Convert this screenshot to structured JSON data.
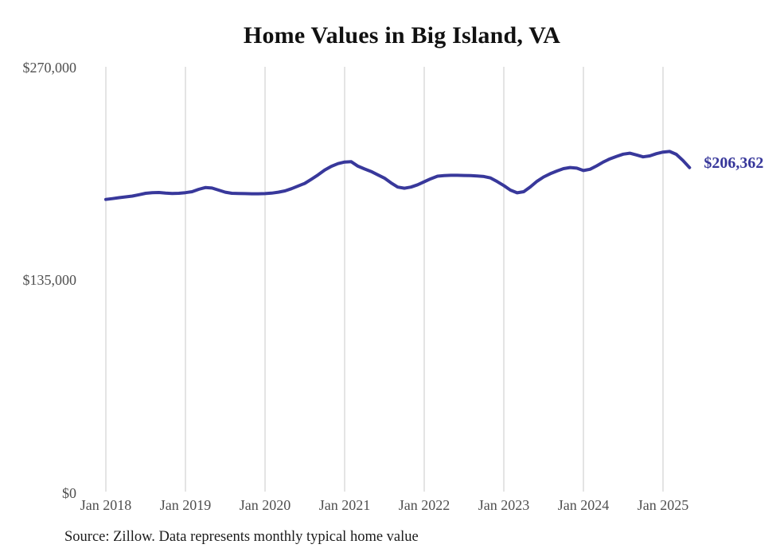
{
  "header": {
    "title": "Home Values in Big Island, VA"
  },
  "footer": {
    "source_text": "Source: Zillow. Data represents monthly typical home value"
  },
  "colors": {
    "line": "#38389b",
    "end_label": "#38389b",
    "gridline": "#c9c9c9",
    "axis_text": "#4f4f4f",
    "title_text": "#111111",
    "source_text": "#1d1d1d",
    "background": "#ffffff"
  },
  "chart_data": {
    "type": "line",
    "title": "Home Values in Big Island, VA",
    "series_name": "Monthly typical home value",
    "unit": "USD",
    "frequency": "monthly",
    "x_start": "Jan 2018",
    "x_end": "May 2025",
    "xlabel": "",
    "ylabel": "",
    "ylim": [
      0,
      270000
    ],
    "grid": "vertical-only",
    "legend": "none",
    "end_label": "$206,362",
    "last_value": 206362,
    "y_ticks": [
      {
        "label": "$270,000",
        "value": 270000
      },
      {
        "label": "$135,000",
        "value": 135000
      },
      {
        "label": "$0",
        "value": 0
      }
    ],
    "x_tick_labels": [
      "Jan 2018",
      "Jan 2019",
      "Jan 2020",
      "Jan 2021",
      "Jan 2022",
      "Jan 2023",
      "Jan 2024",
      "Jan 2025"
    ],
    "months": [
      "2018-01",
      "2018-02",
      "2018-03",
      "2018-04",
      "2018-05",
      "2018-06",
      "2018-07",
      "2018-08",
      "2018-09",
      "2018-10",
      "2018-11",
      "2018-12",
      "2019-01",
      "2019-02",
      "2019-03",
      "2019-04",
      "2019-05",
      "2019-06",
      "2019-07",
      "2019-08",
      "2019-09",
      "2019-10",
      "2019-11",
      "2019-12",
      "2020-01",
      "2020-02",
      "2020-03",
      "2020-04",
      "2020-05",
      "2020-06",
      "2020-07",
      "2020-08",
      "2020-09",
      "2020-10",
      "2020-11",
      "2020-12",
      "2021-01",
      "2021-02",
      "2021-03",
      "2021-04",
      "2021-05",
      "2021-06",
      "2021-07",
      "2021-08",
      "2021-09",
      "2021-10",
      "2021-11",
      "2021-12",
      "2022-01",
      "2022-02",
      "2022-03",
      "2022-04",
      "2022-05",
      "2022-06",
      "2022-07",
      "2022-08",
      "2022-09",
      "2022-10",
      "2022-11",
      "2022-12",
      "2023-01",
      "2023-02",
      "2023-03",
      "2023-04",
      "2023-05",
      "2023-06",
      "2023-07",
      "2023-08",
      "2023-09",
      "2023-10",
      "2023-11",
      "2023-12",
      "2024-01",
      "2024-02",
      "2024-03",
      "2024-04",
      "2024-05",
      "2024-06",
      "2024-07",
      "2024-08",
      "2024-09",
      "2024-10",
      "2024-11",
      "2024-12",
      "2025-01",
      "2025-02",
      "2025-03",
      "2025-04",
      "2025-05"
    ],
    "values": [
      186200,
      186700,
      187300,
      187800,
      188300,
      189200,
      190100,
      190500,
      190600,
      190200,
      190000,
      190100,
      190500,
      191100,
      192600,
      193700,
      193400,
      192100,
      190800,
      190100,
      190000,
      189900,
      189800,
      189800,
      189900,
      190200,
      190800,
      191600,
      193000,
      194700,
      196400,
      199000,
      201800,
      204800,
      207200,
      208900,
      209900,
      210100,
      207300,
      205500,
      203900,
      201800,
      199700,
      196700,
      194000,
      193300,
      194000,
      195500,
      197400,
      199300,
      200900,
      201300,
      201500,
      201500,
      201400,
      201300,
      201000,
      200700,
      199800,
      197500,
      195000,
      192100,
      190400,
      191100,
      194100,
      197700,
      200400,
      202500,
      204200,
      205700,
      206400,
      206000,
      204500,
      205300,
      207500,
      209900,
      211900,
      213500,
      214900,
      215500,
      214400,
      213200,
      213800,
      215200,
      216200,
      216600,
      214800,
      210900,
      206362
    ]
  }
}
